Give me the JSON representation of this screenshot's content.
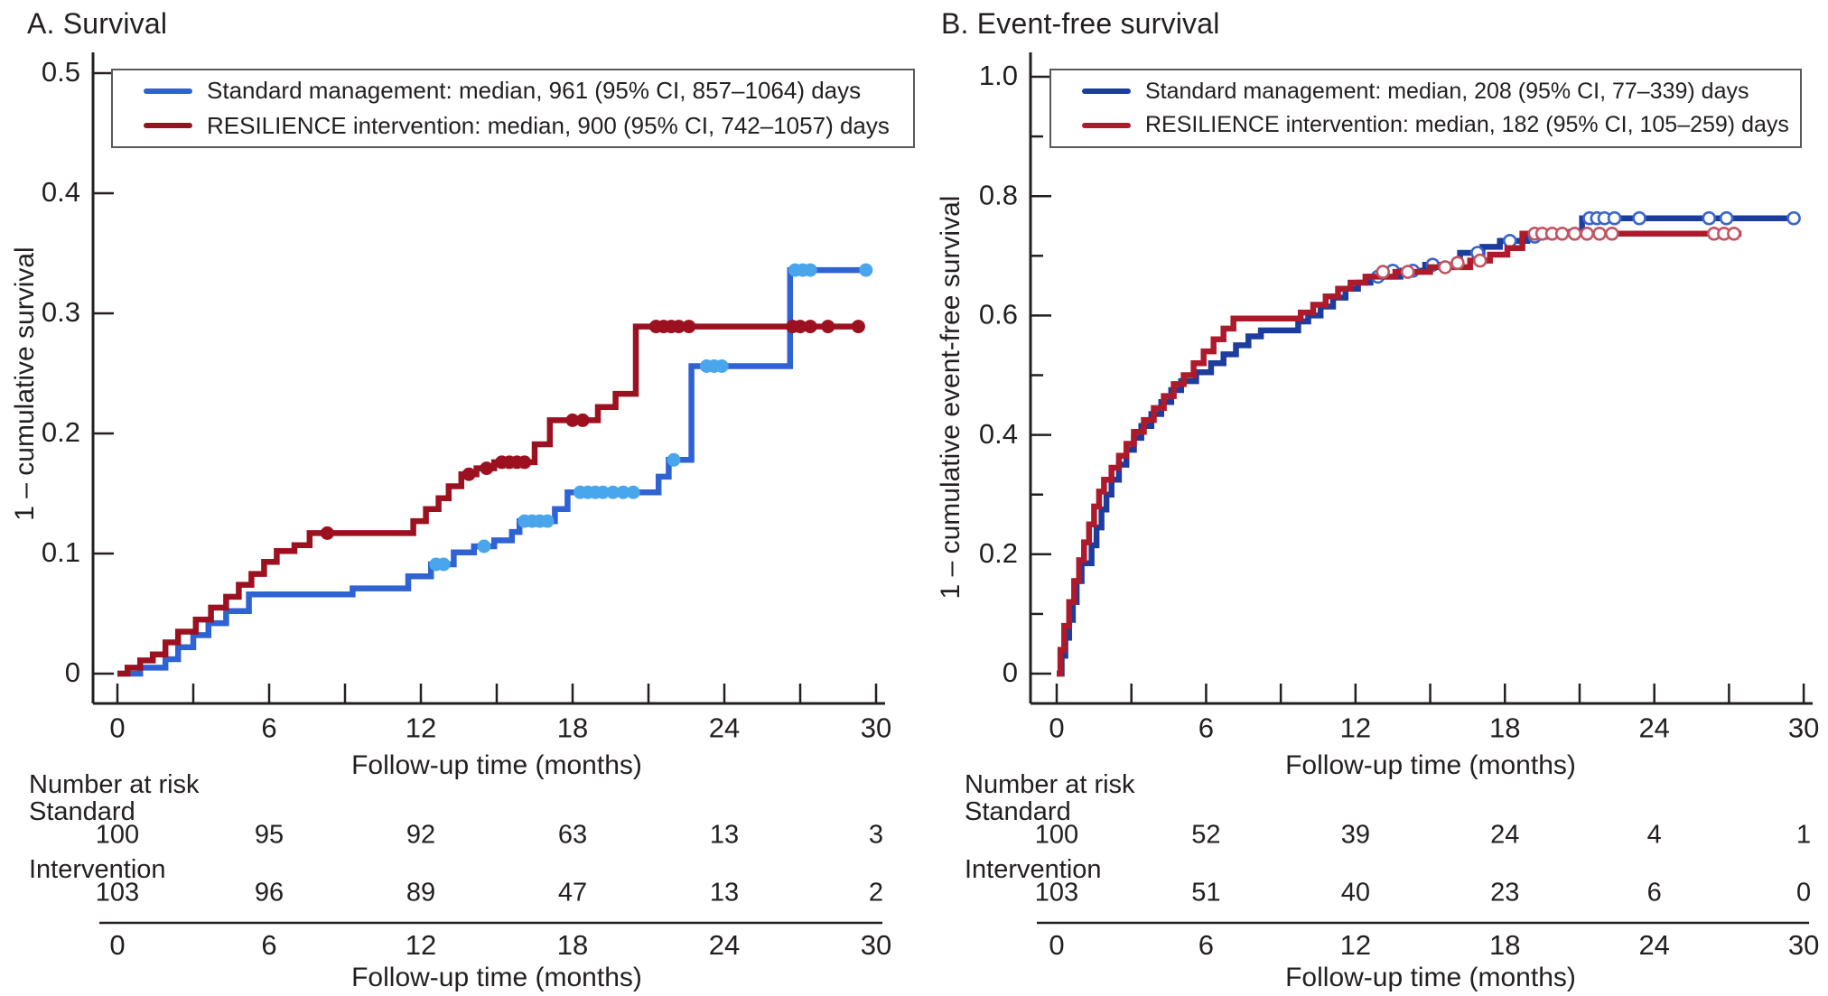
{
  "chart_data": [
    {
      "type": "line",
      "subtype": "kaplan-meier-step",
      "panel_label": "A. Survival",
      "xlabel": "Follow-up time (months)",
      "ylabel": "1 – cumulative survival",
      "xlim": [
        0,
        30
      ],
      "ylim": [
        0,
        0.5
      ],
      "xticks_major": [
        0,
        6,
        12,
        18,
        24,
        30
      ],
      "xticks_minor": [
        3,
        9,
        15,
        21,
        27
      ],
      "yticks": [
        0,
        0.1,
        0.2,
        0.3,
        0.4,
        0.5
      ],
      "ytick_labels": [
        "0",
        "0.1",
        "0.2",
        "0.3",
        "0.4",
        "0.5"
      ],
      "yticks_minor": [],
      "grid": false,
      "legend_position": "top-left-inside",
      "series": [
        {
          "name": "Standard management",
          "legend_label": "Standard management: median, 961 (95% CI, 857–1064) days",
          "color": "#2f62d3",
          "censor_color": "#4aa6ec",
          "censor_style": "bead",
          "end_x": 29.7,
          "steps": [
            [
              0.9,
              0.005
            ],
            [
              1.9,
              0.012
            ],
            [
              2.4,
              0.022
            ],
            [
              3.0,
              0.032
            ],
            [
              3.6,
              0.042
            ],
            [
              4.3,
              0.052
            ],
            [
              5.2,
              0.066
            ],
            [
              9.3,
              0.071
            ],
            [
              11.5,
              0.081
            ],
            [
              12.4,
              0.091
            ],
            [
              13.3,
              0.101
            ],
            [
              14.1,
              0.106
            ],
            [
              14.9,
              0.111
            ],
            [
              15.6,
              0.118
            ],
            [
              15.9,
              0.127
            ],
            [
              17.3,
              0.137
            ],
            [
              17.8,
              0.151
            ],
            [
              21.4,
              0.164
            ],
            [
              21.8,
              0.178
            ],
            [
              22.7,
              0.256
            ],
            [
              26.6,
              0.336
            ]
          ],
          "censors": [
            [
              12.6,
              0.091
            ],
            [
              12.9,
              0.091
            ],
            [
              14.5,
              0.106
            ],
            [
              16.1,
              0.127
            ],
            [
              16.4,
              0.127
            ],
            [
              16.7,
              0.127
            ],
            [
              17.0,
              0.127
            ],
            [
              18.3,
              0.151
            ],
            [
              18.6,
              0.151
            ],
            [
              18.9,
              0.151
            ],
            [
              19.2,
              0.151
            ],
            [
              19.6,
              0.151
            ],
            [
              20.0,
              0.151
            ],
            [
              20.4,
              0.151
            ],
            [
              22.0,
              0.178
            ],
            [
              23.3,
              0.256
            ],
            [
              23.6,
              0.256
            ],
            [
              23.9,
              0.256
            ],
            [
              26.8,
              0.336
            ],
            [
              27.1,
              0.336
            ],
            [
              27.4,
              0.336
            ],
            [
              29.6,
              0.336
            ]
          ]
        },
        {
          "name": "RESILIENCE intervention",
          "legend_label": "RESILIENCE intervention: median, 900 (95% CI, 742–1057) days",
          "color": "#9c1120",
          "censor_color": "#9c1120",
          "censor_style": "bead",
          "end_x": 29.4,
          "steps": [
            [
              0.4,
              0.005
            ],
            [
              0.9,
              0.011
            ],
            [
              1.4,
              0.016
            ],
            [
              1.9,
              0.026
            ],
            [
              2.4,
              0.035
            ],
            [
              3.1,
              0.045
            ],
            [
              3.7,
              0.055
            ],
            [
              4.3,
              0.064
            ],
            [
              4.8,
              0.074
            ],
            [
              5.3,
              0.083
            ],
            [
              5.8,
              0.093
            ],
            [
              6.3,
              0.102
            ],
            [
              7.0,
              0.107
            ],
            [
              7.6,
              0.117
            ],
            [
              11.7,
              0.127
            ],
            [
              12.2,
              0.137
            ],
            [
              12.7,
              0.146
            ],
            [
              13.1,
              0.156
            ],
            [
              13.6,
              0.166
            ],
            [
              14.2,
              0.171
            ],
            [
              14.9,
              0.176
            ],
            [
              16.5,
              0.191
            ],
            [
              17.1,
              0.211
            ],
            [
              19.0,
              0.222
            ],
            [
              19.7,
              0.233
            ],
            [
              20.5,
              0.289
            ]
          ],
          "censors": [
            [
              8.3,
              0.117
            ],
            [
              13.9,
              0.166
            ],
            [
              14.6,
              0.171
            ],
            [
              15.2,
              0.176
            ],
            [
              15.5,
              0.176
            ],
            [
              15.8,
              0.176
            ],
            [
              16.1,
              0.176
            ],
            [
              18.0,
              0.211
            ],
            [
              18.4,
              0.211
            ],
            [
              21.3,
              0.289
            ],
            [
              21.6,
              0.289
            ],
            [
              21.9,
              0.289
            ],
            [
              22.2,
              0.289
            ],
            [
              22.6,
              0.289
            ],
            [
              26.7,
              0.289
            ],
            [
              27.0,
              0.289
            ],
            [
              27.4,
              0.289
            ],
            [
              28.1,
              0.289
            ],
            [
              29.3,
              0.289
            ]
          ]
        }
      ],
      "risk_table": {
        "header": "Number at risk",
        "xlabel": "Follow-up time (months)",
        "time_points": [
          0,
          6,
          12,
          18,
          24,
          30
        ],
        "rows": [
          {
            "label": "Standard",
            "values": [
              100,
              95,
              92,
              63,
              13,
              3
            ]
          },
          {
            "label": "Intervention",
            "values": [
              103,
              96,
              89,
              47,
              13,
              2
            ]
          }
        ]
      }
    },
    {
      "type": "line",
      "subtype": "kaplan-meier-step",
      "panel_label": "B. Event-free survival",
      "xlabel": "Follow-up time (months)",
      "ylabel": "1 – cumulative event-free survival",
      "xlim": [
        0,
        30
      ],
      "ylim": [
        0,
        1.0
      ],
      "xticks_major": [
        0,
        6,
        12,
        18,
        24,
        30
      ],
      "xticks_minor": [
        3,
        9,
        15,
        21,
        27
      ],
      "yticks": [
        0,
        0.2,
        0.4,
        0.6,
        0.8,
        1.0
      ],
      "ytick_labels": [
        "0",
        "0.2",
        "0.4",
        "0.6",
        "0.8",
        "1.0"
      ],
      "yticks_minor": [
        0.1,
        0.3,
        0.5,
        0.7,
        0.9
      ],
      "grid": false,
      "legend_position": "top-left-inside",
      "series": [
        {
          "name": "Standard management",
          "legend_label": "Standard management: median, 208 (95% CI, 77–339) days",
          "color": "#1c3c9e",
          "censor_color": "#3b66c9",
          "censor_style": "ring",
          "end_x": 29.7,
          "steps": [
            [
              0.2,
              0.03
            ],
            [
              0.35,
              0.06
            ],
            [
              0.5,
              0.09
            ],
            [
              0.65,
              0.12
            ],
            [
              0.8,
              0.155
            ],
            [
              1.0,
              0.185
            ],
            [
              1.4,
              0.215
            ],
            [
              1.6,
              0.245
            ],
            [
              1.8,
              0.275
            ],
            [
              2.0,
              0.3
            ],
            [
              2.2,
              0.325
            ],
            [
              2.5,
              0.35
            ],
            [
              2.8,
              0.375
            ],
            [
              3.1,
              0.395
            ],
            [
              3.4,
              0.415
            ],
            [
              3.8,
              0.435
            ],
            [
              4.2,
              0.455
            ],
            [
              4.6,
              0.475
            ],
            [
              5.0,
              0.49
            ],
            [
              5.6,
              0.505
            ],
            [
              6.2,
              0.52
            ],
            [
              6.7,
              0.535
            ],
            [
              7.2,
              0.55
            ],
            [
              7.7,
              0.565
            ],
            [
              8.2,
              0.575
            ],
            [
              9.7,
              0.59
            ],
            [
              10.1,
              0.6
            ],
            [
              10.6,
              0.615
            ],
            [
              11.1,
              0.63
            ],
            [
              11.6,
              0.645
            ],
            [
              12.1,
              0.655
            ],
            [
              12.6,
              0.665
            ],
            [
              13.8,
              0.675
            ],
            [
              14.8,
              0.685
            ],
            [
              16.2,
              0.705
            ],
            [
              17.1,
              0.715
            ],
            [
              17.8,
              0.725
            ],
            [
              18.9,
              0.732
            ],
            [
              19.8,
              0.74
            ],
            [
              21.1,
              0.763
            ]
          ],
          "censors": [
            [
              12.9,
              0.665
            ],
            [
              13.5,
              0.675
            ],
            [
              14.3,
              0.675
            ],
            [
              15.1,
              0.685
            ],
            [
              16.9,
              0.705
            ],
            [
              18.2,
              0.725
            ],
            [
              19.2,
              0.732
            ],
            [
              21.4,
              0.763
            ],
            [
              21.7,
              0.763
            ],
            [
              22.0,
              0.763
            ],
            [
              22.4,
              0.763
            ],
            [
              23.4,
              0.763
            ],
            [
              26.2,
              0.763
            ],
            [
              26.9,
              0.763
            ],
            [
              29.6,
              0.763
            ]
          ]
        },
        {
          "name": "RESILIENCE intervention",
          "legend_label": "RESILIENCE intervention: median, 182 (95% CI, 105–259) days",
          "color": "#ad1a2c",
          "censor_color": "#c25564",
          "censor_style": "ring",
          "end_x": 27.5,
          "steps": [
            [
              0.15,
              0.04
            ],
            [
              0.3,
              0.08
            ],
            [
              0.5,
              0.12
            ],
            [
              0.7,
              0.155
            ],
            [
              0.9,
              0.19
            ],
            [
              1.1,
              0.22
            ],
            [
              1.3,
              0.25
            ],
            [
              1.5,
              0.28
            ],
            [
              1.7,
              0.305
            ],
            [
              1.9,
              0.325
            ],
            [
              2.2,
              0.345
            ],
            [
              2.5,
              0.365
            ],
            [
              2.8,
              0.385
            ],
            [
              3.1,
              0.405
            ],
            [
              3.5,
              0.425
            ],
            [
              3.9,
              0.445
            ],
            [
              4.3,
              0.465
            ],
            [
              4.7,
              0.485
            ],
            [
              5.1,
              0.5
            ],
            [
              5.5,
              0.52
            ],
            [
              5.9,
              0.54
            ],
            [
              6.3,
              0.56
            ],
            [
              6.7,
              0.578
            ],
            [
              7.1,
              0.595
            ],
            [
              9.8,
              0.605
            ],
            [
              10.3,
              0.618
            ],
            [
              10.8,
              0.632
            ],
            [
              11.3,
              0.645
            ],
            [
              11.8,
              0.655
            ],
            [
              12.4,
              0.665
            ],
            [
              13.6,
              0.673
            ],
            [
              15.0,
              0.681
            ],
            [
              16.6,
              0.692
            ],
            [
              17.4,
              0.702
            ],
            [
              18.1,
              0.713
            ],
            [
              18.7,
              0.737
            ]
          ],
          "censors": [
            [
              13.1,
              0.673
            ],
            [
              14.1,
              0.673
            ],
            [
              15.6,
              0.681
            ],
            [
              16.1,
              0.688
            ],
            [
              17.0,
              0.692
            ],
            [
              19.2,
              0.737
            ],
            [
              19.5,
              0.737
            ],
            [
              19.9,
              0.737
            ],
            [
              20.3,
              0.737
            ],
            [
              20.8,
              0.737
            ],
            [
              21.3,
              0.737
            ],
            [
              21.8,
              0.737
            ],
            [
              22.3,
              0.737
            ],
            [
              26.4,
              0.737
            ],
            [
              26.8,
              0.737
            ],
            [
              27.2,
              0.737
            ]
          ]
        }
      ],
      "risk_table": {
        "header": "Number at risk",
        "xlabel": "Follow-up time (months)",
        "time_points": [
          0,
          6,
          12,
          18,
          24,
          30
        ],
        "rows": [
          {
            "label": "Standard",
            "values": [
              100,
              52,
              39,
              24,
              4,
              1
            ]
          },
          {
            "label": "Intervention",
            "values": [
              103,
              51,
              40,
              23,
              6,
              0
            ]
          }
        ]
      }
    }
  ],
  "colors": {
    "text": "#231f20",
    "axis": "#231f20",
    "panel_a_blue": "#2f62d3",
    "panel_a_blue_censor": "#4aa6ec",
    "panel_a_red": "#9c1120",
    "panel_b_blue": "#1c3c9e",
    "panel_b_red": "#ad1a2c"
  }
}
